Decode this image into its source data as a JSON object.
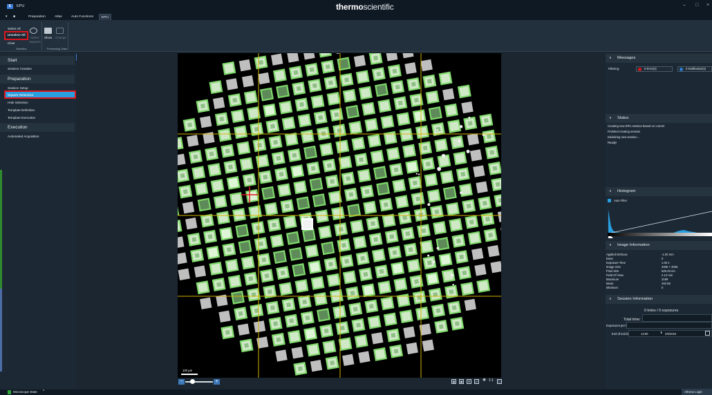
{
  "titlebar": {
    "app_title": "EPU",
    "brand_bold": "thermo",
    "brand_thin": "scientific",
    "minimize_icon": "–",
    "maximize_icon": "□",
    "close_icon": "×"
  },
  "tabs": {
    "menu_icon": "▾",
    "home_icon": "■",
    "items": [
      "Preparation",
      "Atlas",
      "Auto Functions",
      "EPU"
    ],
    "active": "EPU"
  },
  "ribbon": {
    "select_all": "Select All",
    "unselect_all": "Unselect All",
    "clear": "Clear",
    "find_label_1": "Filter",
    "find_label_2": "Ice",
    "select_label": "Select",
    "select_sub": "Squares",
    "show_label": "Show",
    "change_label": "Change",
    "group_selection": "Selection",
    "group_processing": "Processing Order"
  },
  "left_panel": {
    "sections": [
      "Start",
      "Preparation",
      "Execution"
    ],
    "items": {
      "session_creation": "Session Creation",
      "session_setup": "Session Setup",
      "square_selection": "Square Selection",
      "hole_selection": "Hole Selection",
      "template_definition": "Template Definition",
      "template_execution": "Template Execution",
      "automated_acquisition": "Automated Acquisition"
    }
  },
  "atlas": {
    "scale_label": "100 µm",
    "zoom_minus": "−",
    "zoom_plus": "+",
    "zoom_level": 0.25,
    "toolbar_icons": [
      "grid-icon",
      "select-icon",
      "filter-icon",
      "fit-icon",
      "move-icon",
      "one-to-one-icon",
      "fullscreen-icon"
    ],
    "toolbar_glyphs": [
      "▦",
      "▣",
      "⊽",
      "⤢",
      "✥",
      "1:1",
      "⛶"
    ]
  },
  "right_panel": {
    "messages": {
      "title": "Messages",
      "filtering": "Filtering:",
      "errors": "0 Error(s)",
      "notifications": "0 Notification(s)",
      "error_color": "#e0161b",
      "notification_color": "#2a7fd5"
    },
    "status": {
      "title": "Status",
      "lines": [
        "Creating new EPU session based on current",
        "Finished creating session",
        "Initializing new session...",
        "Ready!"
      ]
    },
    "histogram": {
      "title": "Histogram",
      "auto_filter": "Auto Filter",
      "auto_filter_checked": true
    },
    "image_information": {
      "title": "Image Information",
      "rows": [
        {
          "label": "Applied Defocus",
          "value": "-1.00 mm"
        },
        {
          "label": "Dose",
          "value": "0"
        },
        {
          "label": "Exposure Time",
          "value": "1.00 s"
        },
        {
          "label": "Image Size",
          "value": "4005 × 4005"
        },
        {
          "label": "Pixel Size",
          "value": "529.49 nm"
        },
        {
          "label": "Field Of View",
          "value": "2.12 mm"
        },
        {
          "label": "Maximum",
          "value": "3199"
        },
        {
          "label": "Mean",
          "value": "402.58"
        },
        {
          "label": "Minimum",
          "value": "0"
        }
      ]
    },
    "session_information": {
      "title": "Session Information",
      "holes_exposures": "0 holes / 0 exposures",
      "total_time_label": "Total time:",
      "exposures_per_hour_label": "Exposures per hour:",
      "end_time_label": "End of tool time:",
      "end_time": "13:00",
      "end_date": "2/5/2024",
      "spin_icon": "⬍"
    }
  },
  "statusbar": {
    "microscope_state": "Microscope State",
    "chevron": "^",
    "athena_login": "Athena Login"
  },
  "colors": {
    "accent": "#2a9fe0",
    "highlight": "#e0161b",
    "square_green": "#7fd96b",
    "grid_line": "#d4b300"
  }
}
